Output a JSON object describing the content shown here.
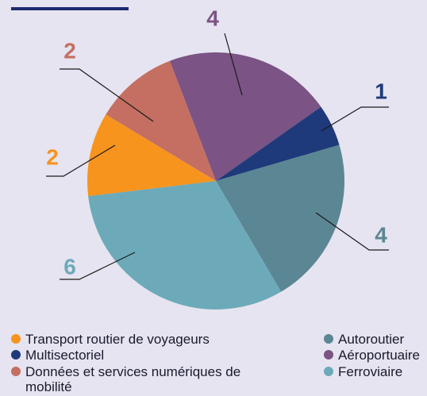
{
  "chart_data": {
    "type": "pie",
    "categories": [
      "Aéroportuaire",
      "Multisectoriel",
      "Autoroutier",
      "Ferroviaire",
      "Transport routier de voyageurs",
      "Données et services numériques de mobilité"
    ],
    "values": [
      4,
      1,
      4,
      6,
      2,
      2
    ],
    "colors": [
      "#7b5384",
      "#1f3a7a",
      "#5b8693",
      "#6caab9",
      "#f7941d",
      "#c46f62"
    ]
  }
}
